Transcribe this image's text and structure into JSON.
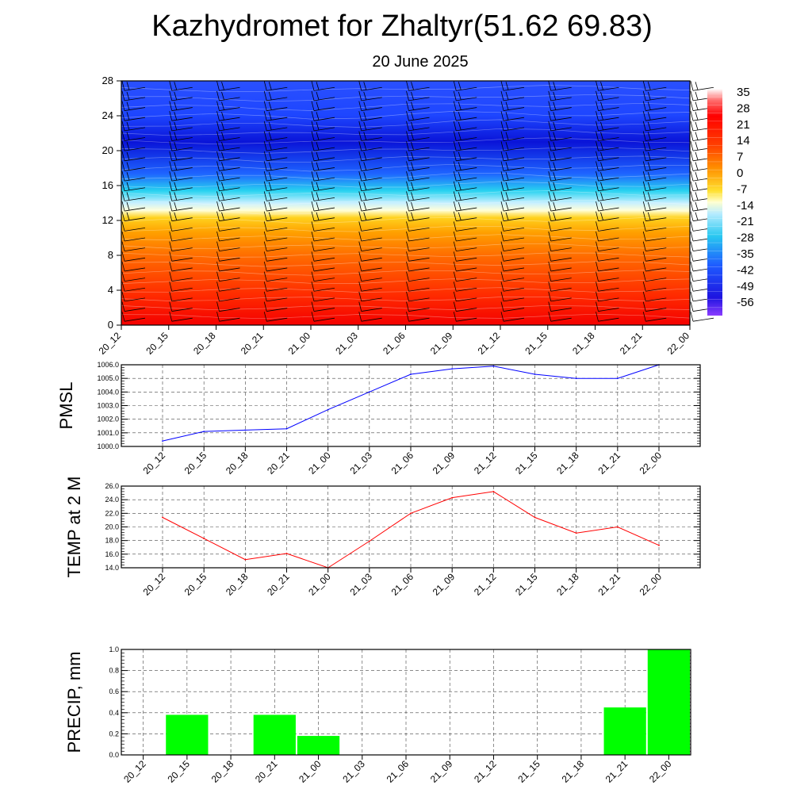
{
  "title": "Kazhydromet for Zhaltyr(51.62 69.83)",
  "subtitle": "20 June 2025",
  "chart_data": [
    {
      "type": "heatmap",
      "x_ticks": [
        "20_12",
        "20_15",
        "20_18",
        "20_21",
        "21_00",
        "21_03",
        "21_06",
        "21_09",
        "21_12",
        "21_15",
        "21_18",
        "21_21",
        "22_00"
      ],
      "y_ticks": [
        "0",
        "4",
        "8",
        "12",
        "16",
        "20",
        "24",
        "28"
      ],
      "ylim": [
        0,
        28
      ],
      "colorbar_labels": [
        "35",
        "28",
        "21",
        "14",
        "7",
        "0",
        "-7",
        "-14",
        "-21",
        "-28",
        "-35",
        "-42",
        "-49",
        "-56"
      ],
      "colorbar_range": [
        -60,
        38
      ],
      "colors": {
        "hot": "#f40000",
        "orange": "#ff8a00",
        "yellow": "#ffd21e",
        "cold": "#28d2f0",
        "blue": "#1e46ff",
        "deep": "#0a0ad2",
        "violet": "#8a3cff"
      },
      "freezing_level_km": [
        13.2,
        13.2,
        13.2,
        13.1,
        13.0,
        13.1,
        13.3,
        13.5,
        13.6,
        13.5,
        13.4,
        13.4,
        13.4
      ],
      "wind_barbs": true
    },
    {
      "type": "line",
      "ylabel": "PMSL",
      "x": [
        "20_12",
        "20_15",
        "20_18",
        "20_21",
        "21_00",
        "21_03",
        "21_06",
        "21_09",
        "21_12",
        "21_15",
        "21_18",
        "21_21",
        "22_00"
      ],
      "series": [
        {
          "values": [
            1000.4,
            1001.1,
            1001.2,
            1001.3,
            1002.7,
            1004.0,
            1005.3,
            1005.7,
            1005.9,
            1005.3,
            1005.0,
            1005.0,
            1006.0
          ],
          "color": "#0000ff"
        }
      ],
      "ylim": [
        1000.0,
        1006.0
      ],
      "y_ticks": [
        "1000.0",
        "1001.0",
        "1002.0",
        "1003.0",
        "1004.0",
        "1005.0",
        "1006.0"
      ],
      "grid": true
    },
    {
      "type": "line",
      "ylabel": "TEMP at 2 M",
      "x": [
        "20_12",
        "20_15",
        "20_18",
        "20_21",
        "21_00",
        "21_03",
        "21_06",
        "21_09",
        "21_12",
        "21_15",
        "21_18",
        "21_21",
        "22_00"
      ],
      "series": [
        {
          "values": [
            21.4,
            18.3,
            15.2,
            16.1,
            14.0,
            17.9,
            22.0,
            24.3,
            25.2,
            21.4,
            19.1,
            20.0,
            17.3
          ],
          "color": "#ff0000"
        }
      ],
      "ylim": [
        14.0,
        26.0
      ],
      "y_ticks": [
        "14.0",
        "16.0",
        "18.0",
        "20.0",
        "22.0",
        "24.0",
        "26.0"
      ],
      "grid": true
    },
    {
      "type": "bar",
      "ylabel": "PRECIP, mm",
      "categories": [
        "20_12",
        "20_15",
        "20_18",
        "20_21",
        "21_00",
        "21_03",
        "21_06",
        "21_09",
        "21_12",
        "21_15",
        "21_18",
        "21_21",
        "22_00"
      ],
      "values": [
        0,
        0.38,
        0,
        0.38,
        0.18,
        0,
        0,
        0,
        0,
        0,
        0,
        0.45,
        1.0
      ],
      "ylim": [
        0,
        1.0
      ],
      "y_ticks": [
        "0.0",
        "0.2",
        "0.4",
        "0.6",
        "0.8",
        "1.0"
      ],
      "color": "#00ff00",
      "grid": true
    }
  ]
}
